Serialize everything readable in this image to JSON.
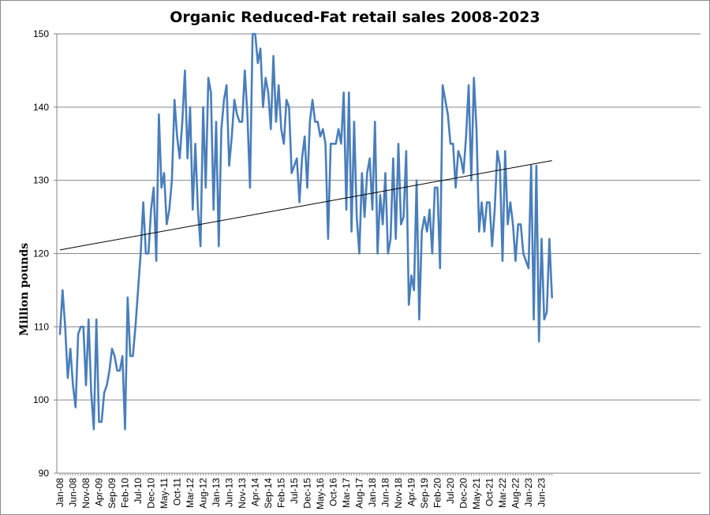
{
  "chart_data": {
    "type": "line",
    "title": "Organic Reduced-Fat retail sales 2008-2023",
    "ylabel": "Million pounds",
    "xlabel": "",
    "ylim": [
      90,
      150
    ],
    "yticks": [
      90,
      100,
      110,
      120,
      130,
      140,
      150
    ],
    "grid": "horizontal",
    "x_start": "Jan-08",
    "x_tick_labels": [
      "Jan-08",
      "Jun-08",
      "Nov-08",
      "Apr-09",
      "Sep-09",
      "Feb-10",
      "Jul-10",
      "Dec-10",
      "May-11",
      "Oct-11",
      "Mar-12",
      "Aug-12",
      "Jan-13",
      "Jun-13",
      "Nov-13",
      "Apr-14",
      "Sep-14",
      "Feb-15",
      "Jul-15",
      "Dec-15",
      "May-16",
      "Oct-16",
      "Mar-17",
      "Aug-17",
      "Jan-18",
      "Jun-18",
      "Nov-18",
      "Apr-19",
      "Sep-19",
      "Feb-20",
      "Jul-20",
      "Dec-20",
      "May-21",
      "Oct-21",
      "Mar-22",
      "Aug-22",
      "Jan-23",
      "Jun-23"
    ],
    "colors": {
      "series": "#4a7ebb",
      "trend": "#000000",
      "grid": "#868686"
    },
    "series": [
      {
        "values": [
          109,
          115,
          110,
          103,
          107,
          102,
          99,
          109,
          110,
          110,
          102,
          111,
          101,
          96,
          111,
          97,
          97,
          101,
          102,
          104,
          107,
          106,
          104,
          104,
          106,
          96,
          114,
          106,
          106,
          110,
          115,
          120,
          127,
          120,
          120,
          126,
          129,
          119,
          139,
          129,
          131,
          124,
          126,
          130,
          141,
          136,
          133,
          138,
          145,
          133,
          140,
          126,
          135,
          126,
          121,
          140,
          129,
          144,
          142,
          126,
          138,
          121,
          137,
          141,
          143,
          132,
          136,
          141,
          139,
          138,
          138,
          145,
          139,
          129,
          150,
          150,
          146,
          148,
          140,
          144,
          142,
          137,
          147,
          138,
          143,
          137,
          135,
          141,
          140,
          131,
          132,
          133,
          127,
          133,
          136,
          129,
          138,
          141,
          138,
          138,
          136,
          137,
          135,
          122,
          135,
          135,
          135,
          137,
          135,
          142,
          126,
          142,
          123,
          138,
          125,
          120,
          131,
          125,
          131,
          133,
          126,
          138,
          120,
          128,
          124,
          131,
          120,
          122,
          133,
          122,
          135,
          124,
          125,
          134,
          113,
          117,
          115,
          130,
          111,
          123,
          125,
          123,
          126,
          120,
          129,
          129,
          118,
          143,
          141,
          139,
          135,
          135,
          129,
          134,
          133,
          131,
          136,
          143,
          130,
          144,
          137,
          123,
          127,
          123,
          127,
          127,
          121,
          126,
          134,
          132,
          119,
          134,
          124,
          127,
          124,
          119,
          124,
          124,
          120,
          119,
          118,
          132,
          111,
          132,
          108,
          122,
          111,
          112,
          122,
          114
        ]
      }
    ],
    "trendline": {
      "start": 120.5,
      "end": 132.7
    }
  }
}
